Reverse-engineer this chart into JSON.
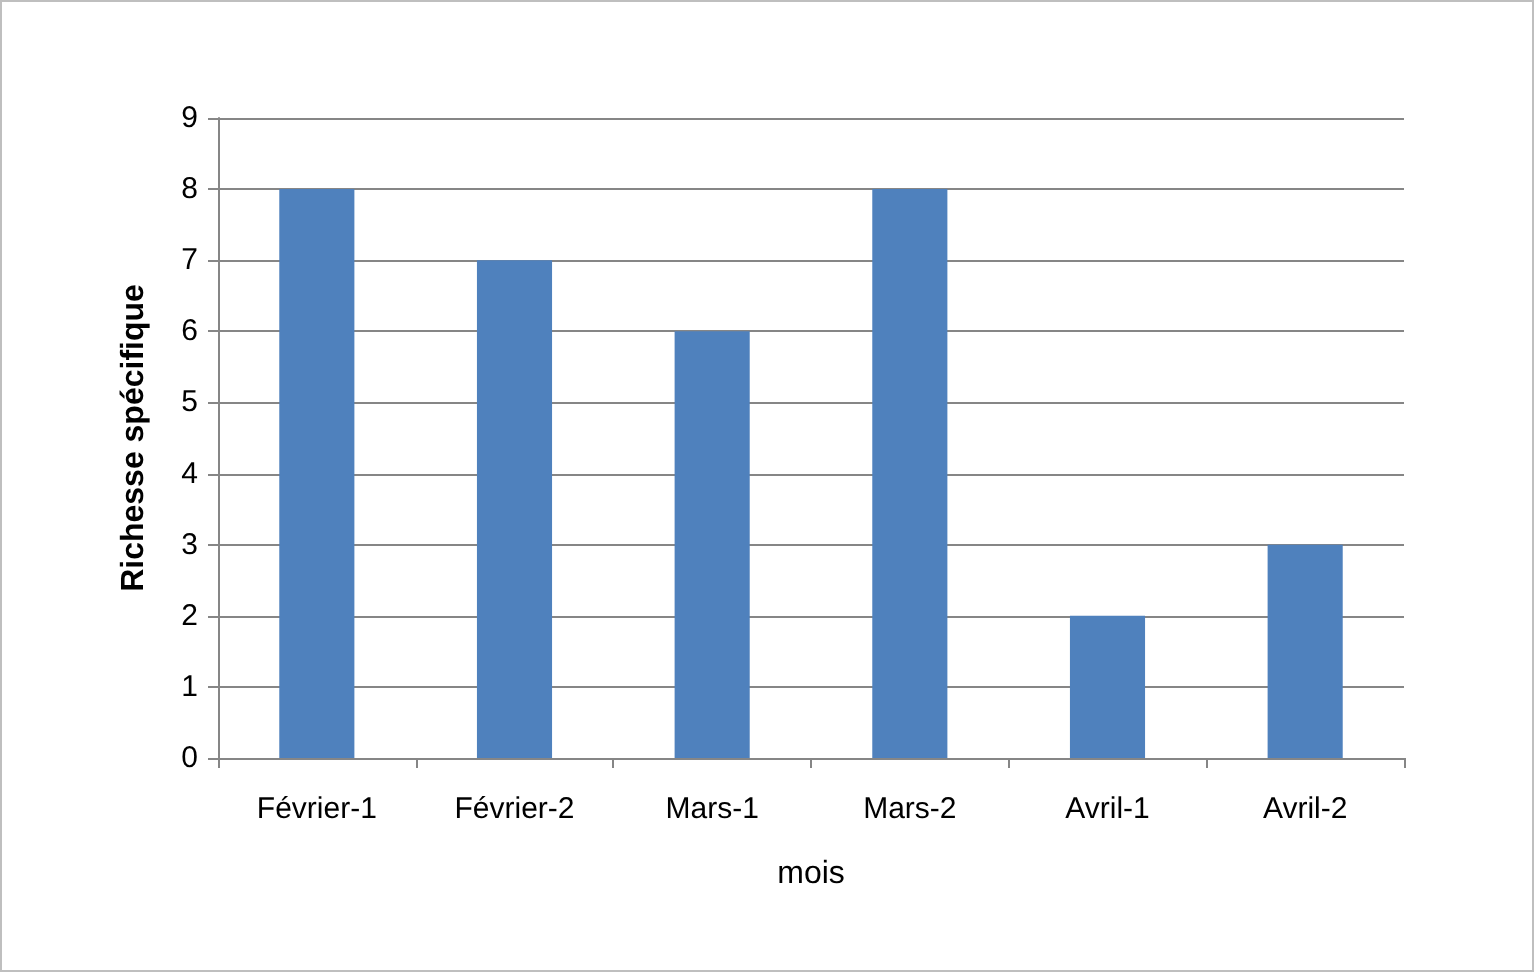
{
  "chart_data": {
    "type": "bar",
    "categories": [
      "Février-1",
      "Février-2",
      "Mars-1",
      "Mars-2",
      "Avril-1",
      "Avril-2"
    ],
    "values": [
      8,
      7,
      6,
      8,
      2,
      3
    ],
    "color": "#4f81bd",
    "xlabel": "mois",
    "ylabel": "Richesse spécifique",
    "ylim": [
      0,
      9
    ],
    "yticks": [
      0,
      1,
      2,
      3,
      4,
      5,
      6,
      7,
      8,
      9
    ],
    "grid": "y"
  }
}
